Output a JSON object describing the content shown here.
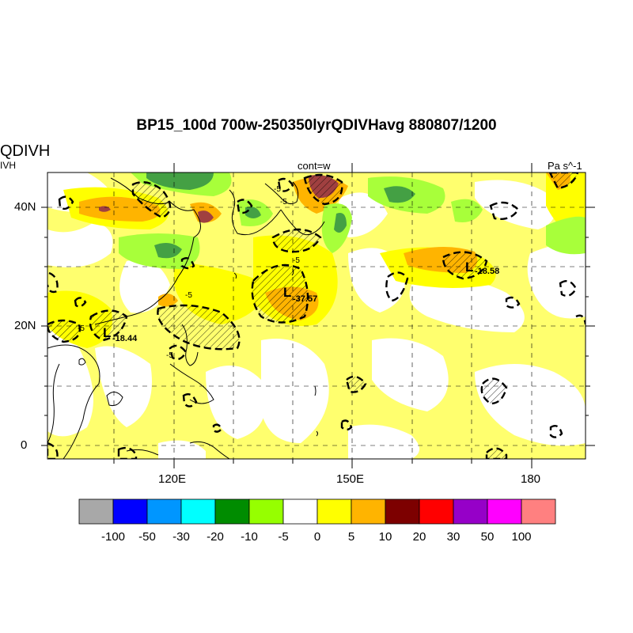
{
  "title": "BP15_100d 700w-250350lyrQDIVHavg  880807/1200",
  "left_label_main": "QDIVH",
  "left_label_sub": "IVH",
  "center_label": "cont=w",
  "units_label": "Pa s^-1",
  "lat_labels": [
    "40N",
    "20N",
    "0"
  ],
  "lon_labels": [
    "120E",
    "150E",
    "180"
  ],
  "lows": [
    {
      "mark": "L",
      "value": "-18.58"
    },
    {
      "mark": "L",
      "value": "-37.57"
    },
    {
      "mark": "L",
      "value": "-18.44"
    }
  ],
  "contour_labels": [
    "-5",
    "-5",
    "-5",
    "-5",
    "-5",
    "-5"
  ],
  "colorbar": {
    "colors": [
      "#a8a8a8",
      "#0000ff",
      "#0096ff",
      "#00ffff",
      "#008c00",
      "#96ff00",
      "#ffffff",
      "#ffff00",
      "#ffb400",
      "#7d0000",
      "#ff0000",
      "#9600c8",
      "#ff00ff",
      "#ff8080"
    ],
    "labels": [
      "-100",
      "-50",
      "-30",
      "-20",
      "-10",
      "-5",
      "0",
      "5",
      "10",
      "20",
      "30",
      "50",
      "100"
    ]
  },
  "colors": {
    "yellow": "#ffff00",
    "pale_yellow": "#ffff66",
    "orange": "#ffb400",
    "dark_red": "#7d0000",
    "dark_green": "#008c00",
    "light_green": "#96ff00"
  }
}
